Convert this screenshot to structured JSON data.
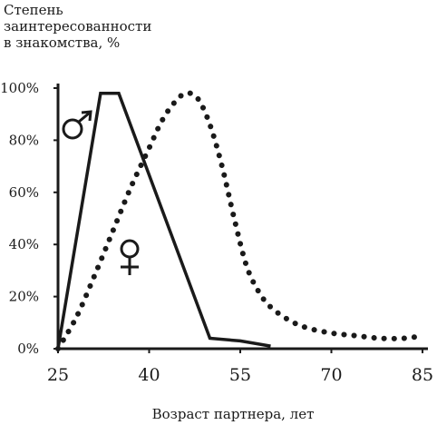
{
  "chart_data": {
    "type": "line",
    "ylabel_lines": [
      "Степень",
      "заинтересованности",
      "в знакомства, %"
    ],
    "xlabel": "Возраст партнера, лет",
    "xlim": [
      25,
      85
    ],
    "ylim": [
      0,
      100
    ],
    "x_ticks": [
      "25",
      "40",
      "55",
      "70",
      "85"
    ],
    "y_ticks": [
      "0%",
      "20%",
      "40%",
      "60%",
      "80%",
      "100%"
    ],
    "grid": false,
    "series": [
      {
        "name": "♂",
        "style": "solid",
        "color": "#1a1a1a",
        "x": [
          25,
          32,
          35,
          50,
          55,
          60
        ],
        "y": [
          0,
          98,
          98,
          4,
          3,
          1
        ]
      },
      {
        "name": "♀",
        "style": "dotted",
        "color": "#1a1a1a",
        "x": [
          25,
          28,
          31,
          34,
          37,
          40,
          42,
          44,
          46,
          48,
          50,
          52,
          54,
          56,
          58,
          60,
          63,
          66,
          70,
          74,
          78,
          82,
          85
        ],
        "y": [
          0,
          12,
          28,
          45,
          62,
          77,
          87,
          94,
          98,
          96,
          86,
          70,
          50,
          32,
          22,
          16,
          11,
          8,
          6,
          5,
          4,
          4,
          5
        ]
      }
    ]
  }
}
